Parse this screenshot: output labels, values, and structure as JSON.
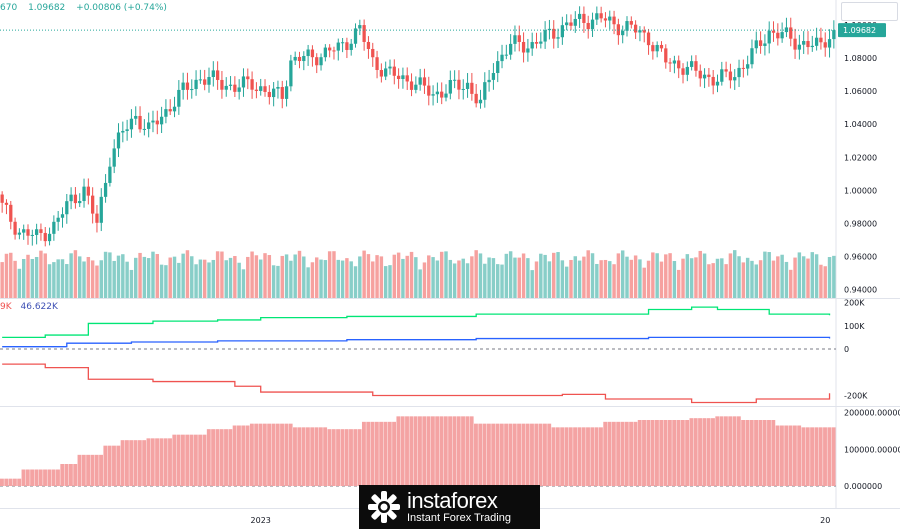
{
  "header": {
    "ohlc_partial": "670",
    "last": "1.09682",
    "change": "+0.00806 (+0.74%)"
  },
  "indicator_header": {
    "value_a": "9K",
    "value_b": "46.622K"
  },
  "watermark": {
    "brand": "instaforex",
    "tagline": "Instant Forex Trading"
  },
  "colors": {
    "up": "#26a69a",
    "down": "#ef5350",
    "line_green": "#00e676",
    "line_blue": "#2962ff",
    "line_red": "#ef5350",
    "bars": "#f4a3a3",
    "price_tag": "#26a69a",
    "dashed": "#26a69a"
  },
  "chart_data": [
    {
      "type": "candlestick",
      "title": "",
      "last_price": 1.09682,
      "price_label": "1.09682",
      "ylim": [
        0.935,
        1.115
      ],
      "y_ticks": [
        0.94,
        0.96,
        0.98,
        1.0,
        1.02,
        1.04,
        1.06,
        1.08,
        1.1
      ],
      "y_tick_labels": [
        "0.94000",
        "0.96000",
        "0.98000",
        "1.00000",
        "1.02000",
        "1.04000",
        "1.06000",
        "1.08000",
        "1.10000"
      ],
      "x_tick_labels": [
        {
          "label": "2023",
          "index": 60
        },
        {
          "label": "20",
          "index": 191
        }
      ],
      "anchors": [
        [
          0,
          0.99
        ],
        [
          4,
          0.975
        ],
        [
          8,
          0.972
        ],
        [
          12,
          0.978
        ],
        [
          16,
          0.995
        ],
        [
          19,
          1.0
        ],
        [
          22,
          0.98
        ],
        [
          25,
          1.02
        ],
        [
          28,
          1.035
        ],
        [
          31,
          1.045
        ],
        [
          34,
          1.036
        ],
        [
          38,
          1.048
        ],
        [
          42,
          1.06
        ],
        [
          46,
          1.068
        ],
        [
          50,
          1.066
        ],
        [
          54,
          1.062
        ],
        [
          58,
          1.065
        ],
        [
          62,
          1.058
        ],
        [
          65,
          1.058
        ],
        [
          67,
          1.078
        ],
        [
          70,
          1.08
        ],
        [
          74,
          1.082
        ],
        [
          78,
          1.086
        ],
        [
          80,
          1.09
        ],
        [
          83,
          1.097
        ],
        [
          86,
          1.078
        ],
        [
          90,
          1.07
        ],
        [
          95,
          1.066
        ],
        [
          100,
          1.058
        ],
        [
          104,
          1.062
        ],
        [
          108,
          1.064
        ],
        [
          111,
          1.052
        ],
        [
          114,
          1.075
        ],
        [
          118,
          1.088
        ],
        [
          123,
          1.088
        ],
        [
          127,
          1.094
        ],
        [
          131,
          1.1
        ],
        [
          135,
          1.103
        ],
        [
          139,
          1.104
        ],
        [
          142,
          1.1
        ],
        [
          146,
          1.098
        ],
        [
          150,
          1.092
        ],
        [
          154,
          1.078
        ],
        [
          158,
          1.075
        ],
        [
          162,
          1.07
        ],
        [
          166,
          1.067
        ],
        [
          170,
          1.07
        ],
        [
          174,
          1.082
        ],
        [
          178,
          1.096
        ],
        [
          181,
          1.094
        ],
        [
          184,
          1.09
        ],
        [
          187,
          1.088
        ],
        [
          190,
          1.087
        ],
        [
          192,
          1.095
        ]
      ],
      "volume_range": [
        0.9,
        3.2
      ]
    },
    {
      "type": "line",
      "title": "",
      "y_ticks": [
        200000,
        100000,
        0,
        -100000,
        -200000
      ],
      "y_tick_labels": [
        "200K",
        "100K",
        "0",
        "",
        "-200K"
      ],
      "ylim": [
        -245000,
        215000
      ],
      "series": [
        {
          "color": "line_green",
          "points": [
            [
              0,
              50000
            ],
            [
              10,
              60000
            ],
            [
              20,
              110000
            ],
            [
              35,
              120000
            ],
            [
              50,
              125000
            ],
            [
              60,
              135000
            ],
            [
              80,
              140000
            ],
            [
              110,
              150000
            ],
            [
              130,
              150000
            ],
            [
              150,
              170000
            ],
            [
              160,
              180000
            ],
            [
              166,
              170000
            ],
            [
              178,
              150000
            ],
            [
              192,
              145000
            ]
          ]
        },
        {
          "color": "line_blue",
          "points": [
            [
              0,
              10000
            ],
            [
              15,
              25000
            ],
            [
              30,
              30000
            ],
            [
              50,
              35000
            ],
            [
              80,
              40000
            ],
            [
              110,
              45000
            ],
            [
              130,
              45000
            ],
            [
              150,
              50000
            ],
            [
              170,
              50000
            ],
            [
              192,
              45000
            ]
          ]
        },
        {
          "color": "line_red",
          "points": [
            [
              0,
              -65000
            ],
            [
              10,
              -80000
            ],
            [
              20,
              -130000
            ],
            [
              35,
              -140000
            ],
            [
              54,
              -160000
            ],
            [
              60,
              -185000
            ],
            [
              86,
              -200000
            ],
            [
              110,
              -200000
            ],
            [
              130,
              -195000
            ],
            [
              140,
              -215000
            ],
            [
              160,
              -230000
            ],
            [
              175,
              -215000
            ],
            [
              192,
              -190000
            ]
          ]
        }
      ]
    },
    {
      "type": "bar",
      "title": "",
      "y_ticks": [
        200000,
        100000,
        0
      ],
      "y_tick_labels": [
        "200000.000000",
        "100000.000000",
        "0.000000"
      ],
      "ylim": [
        0,
        210000
      ],
      "steps": [
        [
          0,
          20000
        ],
        [
          5,
          45000
        ],
        [
          14,
          60000
        ],
        [
          18,
          85000
        ],
        [
          24,
          110000
        ],
        [
          28,
          125000
        ],
        [
          34,
          130000
        ],
        [
          40,
          140000
        ],
        [
          48,
          155000
        ],
        [
          54,
          165000
        ],
        [
          58,
          170000
        ],
        [
          68,
          160000
        ],
        [
          76,
          155000
        ],
        [
          84,
          175000
        ],
        [
          92,
          190000
        ],
        [
          110,
          170000
        ],
        [
          128,
          160000
        ],
        [
          140,
          175000
        ],
        [
          148,
          180000
        ],
        [
          160,
          185000
        ],
        [
          166,
          190000
        ],
        [
          172,
          180000
        ],
        [
          180,
          165000
        ],
        [
          186,
          160000
        ],
        [
          193,
          160000
        ]
      ]
    }
  ]
}
